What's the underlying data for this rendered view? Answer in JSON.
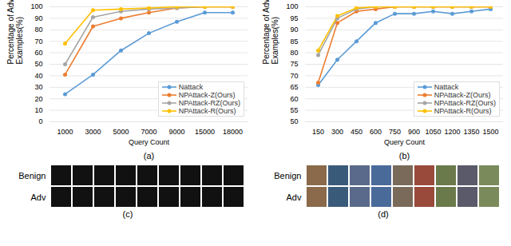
{
  "chart_data": [
    {
      "type": "line",
      "title": "(a)",
      "xlabel": "Query Count",
      "ylabel": "Percentage of Adv\nExamples(%)",
      "categories": [
        "1000",
        "3000",
        "5000",
        "7000",
        "9000",
        "15000",
        "18000"
      ],
      "series": [
        {
          "name": "Nattack",
          "color": "#5b9bd5",
          "marker": "circle",
          "values": [
            24,
            41,
            62,
            77,
            87,
            95,
            95
          ]
        },
        {
          "name": "NPAttack-Z(Ours)",
          "color": "#ed7d31",
          "marker": "circle",
          "values": [
            41,
            83,
            90,
            95,
            99,
            100,
            100
          ]
        },
        {
          "name": "NPAttack-RZ(Ours)",
          "color": "#a5a5a5",
          "marker": "circle",
          "values": [
            50,
            91,
            96,
            98,
            99,
            100,
            100
          ]
        },
        {
          "name": "NPAttack-R(Ours)",
          "color": "#ffc000",
          "marker": "circle",
          "values": [
            68,
            97,
            98,
            99,
            100,
            100,
            100
          ]
        }
      ],
      "ylim": [
        0,
        100
      ],
      "yticks": [
        0,
        10,
        20,
        30,
        40,
        50,
        60,
        70,
        80,
        90,
        100
      ],
      "grid": true,
      "legend": "lower right"
    },
    {
      "type": "line",
      "title": "(b)",
      "xlabel": "Query Count",
      "ylabel": "Percentage of Adv\nExamples(%)",
      "categories": [
        "150",
        "300",
        "450",
        "600",
        "750",
        "900",
        "1050",
        "1200",
        "1350",
        "1500"
      ],
      "series": [
        {
          "name": "Nattack",
          "color": "#5b9bd5",
          "marker": "circle",
          "values": [
            66,
            77,
            85,
            93,
            97,
            97,
            98,
            97,
            98,
            99
          ]
        },
        {
          "name": "NPAttack-Z(Ours)",
          "color": "#ed7d31",
          "marker": "circle",
          "values": [
            67,
            93,
            98,
            99,
            100,
            100,
            100,
            100,
            100,
            100
          ]
        },
        {
          "name": "NPAttack-RZ(Ours)",
          "color": "#a5a5a5",
          "marker": "circle",
          "values": [
            79,
            95,
            99,
            100,
            100,
            100,
            100,
            100,
            100,
            100
          ]
        },
        {
          "name": "NPAttack-R(Ours)",
          "color": "#ffc000",
          "marker": "circle",
          "values": [
            81,
            96,
            99.5,
            100,
            100,
            100,
            100,
            100,
            100,
            100
          ]
        }
      ],
      "ylim": [
        50,
        100
      ],
      "yticks": [
        50,
        55,
        60,
        65,
        70,
        75,
        80,
        85,
        90,
        95,
        100
      ],
      "grid": true,
      "legend": "lower right"
    }
  ],
  "image_panels": [
    {
      "caption": "(c)",
      "row_labels": [
        "Benign",
        "Adv"
      ],
      "images_per_row": 9
    },
    {
      "caption": "(d)",
      "row_labels": [
        "Benign",
        "Adv"
      ],
      "images_per_row": 9
    }
  ]
}
